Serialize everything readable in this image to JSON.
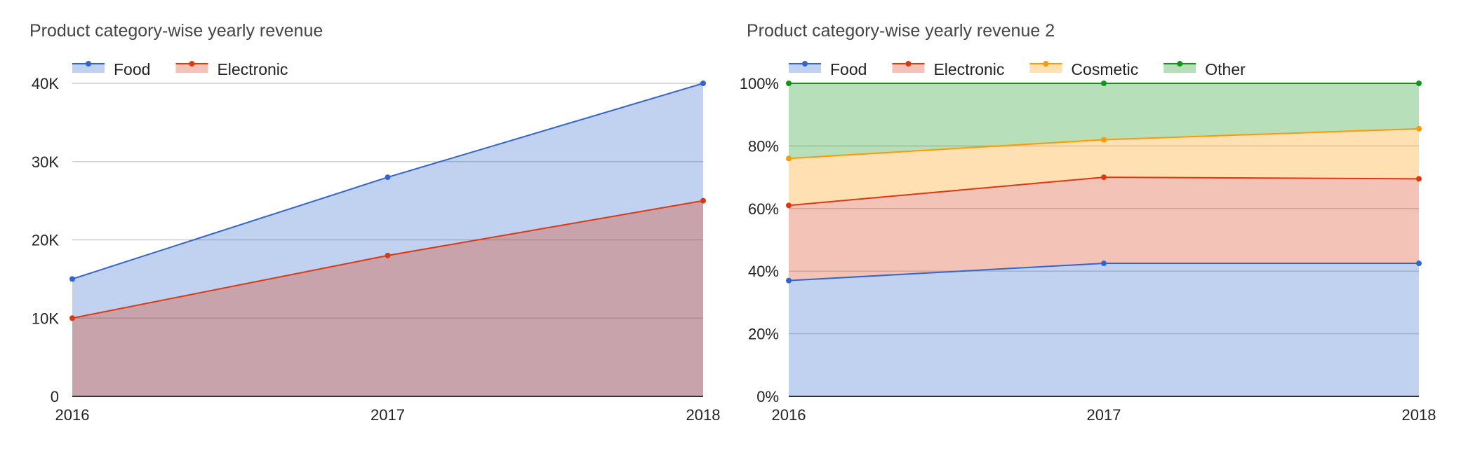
{
  "colors": {
    "food": "#3366cc",
    "electronic": "#dc3912",
    "cosmetic": "#ff9900",
    "other": "#109618",
    "title": "#444444",
    "axis_text": "#222222",
    "grid": "#cccccc",
    "baseline": "#333333"
  },
  "chart_data": [
    {
      "type": "area",
      "title": "Product category-wise yearly revenue",
      "stacked": false,
      "x": [
        "2016",
        "2017",
        "2018"
      ],
      "series": [
        {
          "name": "Food",
          "color_key": "food",
          "values": [
            15000,
            28000,
            40000
          ]
        },
        {
          "name": "Electronic",
          "color_key": "electronic",
          "values": [
            10000,
            18000,
            25000
          ]
        }
      ],
      "ylim": [
        0,
        40000
      ],
      "yticks": [
        0,
        10000,
        20000,
        30000,
        40000
      ],
      "ytick_labels": [
        "0",
        "10K",
        "20K",
        "30K",
        "40K"
      ],
      "legend": "top-left",
      "grid": true,
      "xlabel": "",
      "ylabel": ""
    },
    {
      "type": "area",
      "title": "Product category-wise yearly revenue 2",
      "stacked": "percent",
      "x": [
        "2016",
        "2017",
        "2018"
      ],
      "series": [
        {
          "name": "Food",
          "color_key": "food",
          "values": [
            37,
            42.5,
            42.5
          ]
        },
        {
          "name": "Electronic",
          "color_key": "electronic",
          "values": [
            24,
            27.5,
            27
          ]
        },
        {
          "name": "Cosmetic",
          "color_key": "cosmetic",
          "values": [
            15,
            12,
            16
          ]
        },
        {
          "name": "Other",
          "color_key": "other",
          "values": [
            24,
            18,
            14.5
          ]
        }
      ],
      "ylim": [
        0,
        100
      ],
      "yticks": [
        0,
        20,
        40,
        60,
        80,
        100
      ],
      "ytick_labels": [
        "0%",
        "20%",
        "40%",
        "60%",
        "80%",
        "100%"
      ],
      "legend": "top-left",
      "grid": true,
      "xlabel": "",
      "ylabel": ""
    }
  ]
}
